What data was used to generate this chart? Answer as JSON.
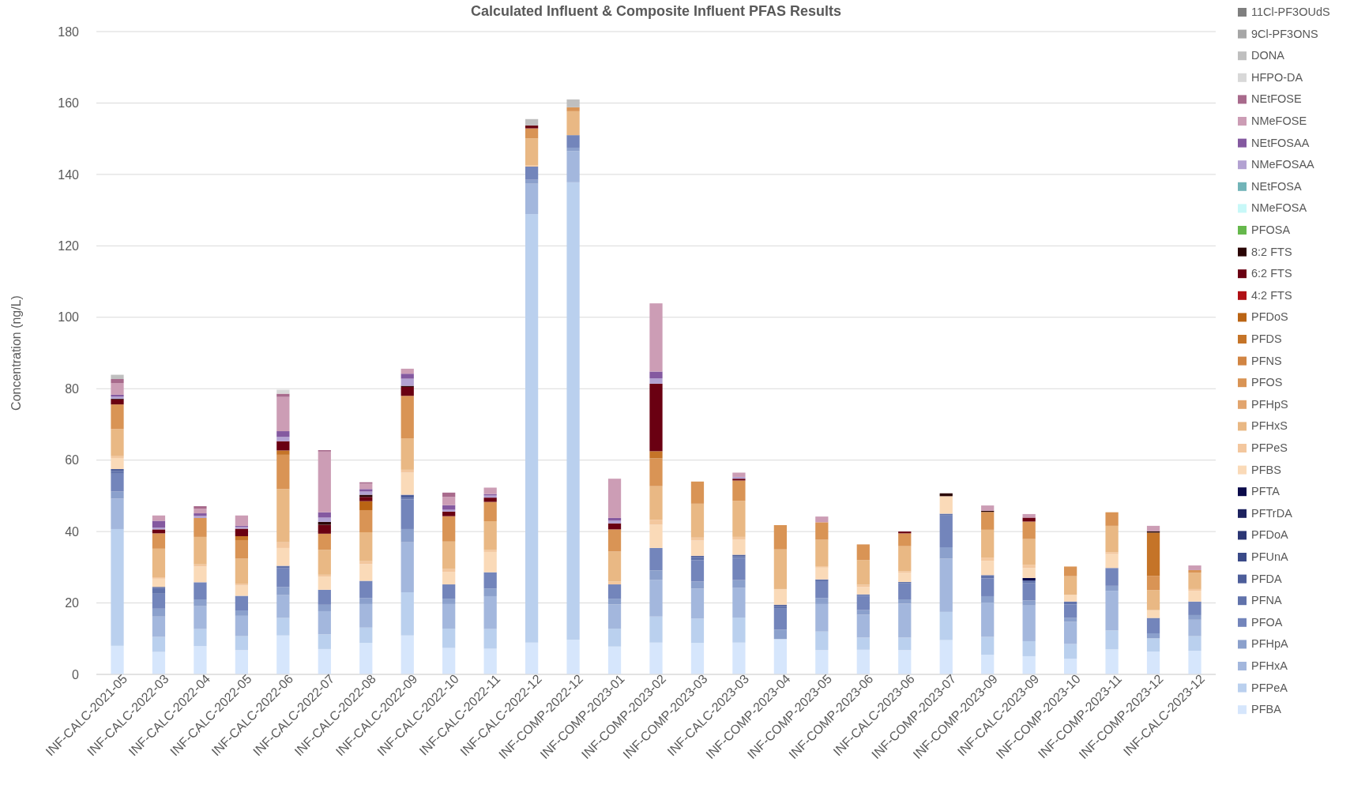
{
  "chart_data": {
    "type": "bar",
    "stacked": true,
    "title": "Calculated Influent & Composite Influent PFAS Results",
    "ylabel": "Concentration (ng/L)",
    "categories": [
      "INF-CALC-2021-05",
      "INF-CALC-2022-03",
      "INF-CALC-2022-04",
      "INF-CALC-2022-05",
      "INF-CALC-2022-06",
      "INF-CALC-2022-07",
      "INF-CALC-2022-08",
      "INF-CALC-2022-09",
      "INF-CALC-2022-10",
      "INF-CALC-2022-11",
      "INF-CALC-2022-12",
      "INF-COMP-2022-12",
      "INF-COMP-2023-01",
      "INF-COMP-2023-02",
      "INF-COMP-2023-03",
      "INF-CALC-2023-03",
      "INF-COMP-2023-04",
      "INF-COMP-2023-05",
      "INF-COMP-2023-06",
      "INF-CALC-2023-06",
      "INF-COMP-2023-07",
      "INF-COMP-2023-09",
      "INF-CALC-2023-09",
      "INF-COMP-2023-10",
      "INF-COMP-2023-11",
      "INF-COMP-2023-12",
      "INF-CALC-2023-12"
    ],
    "ylim": [
      0,
      180
    ],
    "yticks": [
      0,
      20,
      40,
      60,
      80,
      100,
      120,
      140,
      160,
      180
    ],
    "grid": "y",
    "legend": "right",
    "series": [
      {
        "name": "PFBA",
        "color": "#d6e6fc",
        "values": [
          8.0,
          6.3,
          7.9,
          6.8,
          10.9,
          7.1,
          8.8,
          10.9,
          7.4,
          7.2,
          8.9,
          9.7,
          7.8,
          8.9,
          8.8,
          8.9,
          9.9,
          6.8,
          6.9,
          6.8,
          9.6,
          5.5,
          5.1,
          4.4,
          7.0,
          6.4,
          6.6
        ]
      },
      {
        "name": "PFPeA",
        "color": "#bad0ee",
        "values": [
          32.7,
          4.2,
          4.8,
          3.9,
          4.9,
          4.1,
          4.3,
          12.1,
          5.4,
          5.5,
          120.0,
          128.1,
          5.0,
          7.3,
          6.8,
          7.0,
          0,
          5.2,
          3.4,
          3.5,
          7.9,
          5.0,
          4.2,
          4.1,
          5.3,
          3.7,
          4.1
        ]
      },
      {
        "name": "PFHxA",
        "color": "#a3b7dd",
        "values": [
          8.5,
          5.7,
          6.4,
          5.7,
          6.4,
          6.5,
          6.6,
          14.0,
          6.9,
          9.2,
          8.5,
          8.7,
          6.8,
          10.3,
          8.4,
          8.3,
          0,
          7.7,
          6.4,
          9.5,
          14.9,
          9.6,
          10.0,
          6.2,
          11.1,
          0,
          4.6
        ]
      },
      {
        "name": "PFHpA",
        "color": "#8ba0cc",
        "values": [
          2.0,
          2.2,
          1.9,
          1.5,
          2.3,
          1.8,
          1.7,
          3.7,
          1.5,
          2.1,
          1.1,
          1.0,
          1.6,
          2.6,
          2.0,
          2.2,
          2.6,
          1.7,
          1.3,
          1.2,
          3.2,
          1.8,
          1.4,
          1.1,
          1.4,
          1.4,
          1.3
        ]
      },
      {
        "name": "PFOA",
        "color": "#7385bb",
        "values": [
          5.0,
          4.2,
          4.8,
          4.1,
          5.2,
          4.2,
          4.8,
          8.3,
          4.0,
          4.6,
          3.7,
          3.5,
          4.0,
          6.3,
          6.0,
          6.2,
          5.9,
          4.7,
          4.0,
          4.5,
          8.9,
          5.0,
          4.8,
          3.8,
          5.0,
          4.0,
          3.8
        ]
      },
      {
        "name": "PFNA",
        "color": "#6173ab",
        "values": [
          0.8,
          1.6,
          0,
          0,
          0.7,
          0,
          0,
          0.4,
          0,
          0,
          0,
          0,
          0,
          0,
          0.8,
          0.5,
          0.7,
          0.5,
          0.4,
          0.4,
          0.5,
          0.9,
          0.8,
          0.8,
          0,
          0.3,
          0
        ]
      },
      {
        "name": "PFDA",
        "color": "#4d5e9a",
        "values": [
          0.5,
          0.3,
          0,
          0,
          0,
          0,
          0,
          0.9,
          0,
          0,
          0,
          0,
          0,
          0,
          0.4,
          0.4,
          0.4,
          0,
          0,
          0,
          0,
          0,
          0,
          0,
          0,
          0,
          0
        ]
      },
      {
        "name": "PFUnA",
        "color": "#3a4a88",
        "values": [
          0,
          0,
          0,
          0,
          0,
          0,
          0,
          0,
          0,
          0,
          0,
          0,
          0,
          0,
          0,
          0,
          0,
          0,
          0,
          0,
          0,
          0,
          0,
          0,
          0,
          0,
          0
        ]
      },
      {
        "name": "PFDoA",
        "color": "#2b3674",
        "values": [
          0,
          0,
          0,
          0,
          0,
          0,
          0,
          0,
          0,
          0,
          0,
          0,
          0,
          0,
          0,
          0,
          0,
          0,
          0,
          0,
          0,
          0,
          0,
          0,
          0,
          0,
          0
        ]
      },
      {
        "name": "PFTrDA",
        "color": "#1d225f",
        "values": [
          0,
          0,
          0,
          0,
          0,
          0,
          0,
          0,
          0,
          0,
          0,
          0,
          0,
          0,
          0,
          0,
          0,
          0,
          0,
          0,
          0,
          0,
          0,
          0,
          0,
          0,
          0
        ]
      },
      {
        "name": "PFTA",
        "color": "#0a0a4a",
        "values": [
          0,
          0,
          0,
          0,
          0,
          0,
          0,
          0,
          0,
          0,
          0,
          0,
          0,
          0,
          0,
          0,
          0,
          0,
          0,
          0,
          0,
          0,
          0.7,
          0,
          0,
          0,
          0
        ]
      },
      {
        "name": "PFBS",
        "color": "#fadab8",
        "values": [
          3.1,
          2.3,
          4.4,
          2.9,
          5.0,
          3.7,
          4.7,
          6.2,
          3.5,
          5.7,
          0,
          0,
          0,
          6.5,
          4.3,
          4.2,
          4.4,
          3.3,
          2.1,
          2.6,
          4.9,
          4.0,
          2.8,
          1.9,
          3.9,
          2.2,
          3.0
        ]
      },
      {
        "name": "PFPeS",
        "color": "#f3c79e",
        "values": [
          0.5,
          0.4,
          0.6,
          0.5,
          1.6,
          0.5,
          0.8,
          0.8,
          0.8,
          0.6,
          0.4,
          0,
          0.8,
          1.4,
          0.8,
          0.8,
          0,
          0.4,
          0.6,
          0.4,
          0,
          0.9,
          0.9,
          0,
          0.5,
          0,
          0.5
        ]
      },
      {
        "name": "PFHxS",
        "color": "#e9b884",
        "values": [
          7.6,
          8.0,
          7.7,
          7.0,
          14.9,
          7.0,
          8.1,
          8.8,
          7.7,
          8.0,
          7.5,
          6.7,
          8.4,
          9.4,
          9.5,
          10.1,
          11.1,
          7.4,
          6.9,
          7.0,
          0,
          7.8,
          7.2,
          5.2,
          7.4,
          5.6,
          4.6
        ]
      },
      {
        "name": "PFHpS",
        "color": "#e2a56e",
        "values": [
          0,
          0,
          0,
          0,
          0,
          0,
          0,
          0,
          0,
          0,
          0,
          0,
          0,
          0,
          0,
          0,
          0,
          0,
          0,
          0,
          0,
          0,
          0,
          0,
          0,
          0,
          0
        ]
      },
      {
        "name": "PFOS",
        "color": "#d99455",
        "values": [
          6.9,
          4.3,
          5.3,
          5.2,
          9.6,
          4.5,
          6.2,
          11.9,
          7.1,
          5.4,
          2.8,
          1.1,
          6.2,
          7.8,
          6.2,
          5.7,
          6.8,
          4.9,
          4.4,
          3.6,
          0,
          5.0,
          4.9,
          2.7,
          3.8,
          4.0,
          0.7
        ]
      },
      {
        "name": "PFNS",
        "color": "#d18543",
        "values": [
          0,
          0,
          0,
          0,
          0,
          0,
          0,
          0,
          0,
          0,
          0,
          0,
          0,
          0,
          0,
          0,
          0,
          0,
          0,
          0,
          0,
          0,
          0,
          0,
          0,
          0,
          0
        ]
      },
      {
        "name": "PFDS",
        "color": "#c57428",
        "values": [
          0,
          0,
          0,
          1.1,
          1.2,
          0,
          0,
          0,
          0,
          0,
          0,
          0,
          0,
          2.0,
          0,
          0,
          0,
          0,
          0,
          0,
          0,
          0,
          0,
          0,
          0,
          12.1,
          0
        ]
      },
      {
        "name": "PFDoS",
        "color": "#ba6414",
        "values": [
          0,
          0,
          0,
          0,
          0,
          0,
          2.5,
          0,
          0,
          0,
          0,
          0,
          0,
          0,
          0,
          0,
          0,
          0,
          0,
          0,
          0,
          0,
          0,
          0,
          0,
          0,
          0
        ]
      },
      {
        "name": "4:2 FTS",
        "color": "#b01015",
        "values": [
          0,
          0,
          0,
          0,
          0,
          0,
          0,
          0,
          0,
          0,
          0,
          0,
          0,
          0,
          0,
          0,
          0,
          0,
          0,
          0,
          0,
          0,
          0,
          0,
          0,
          0,
          0
        ]
      },
      {
        "name": "6:2 FTS",
        "color": "#6a0012",
        "values": [
          1.4,
          1.1,
          0,
          2.1,
          2.6,
          2.5,
          1.2,
          2.5,
          1.3,
          1.2,
          0.8,
          0,
          1.7,
          18.9,
          0,
          0.5,
          0,
          0,
          0,
          0.5,
          0,
          0,
          1.1,
          0,
          0,
          0,
          0
        ]
      },
      {
        "name": "8:2 FTS",
        "color": "#2a0505",
        "values": [
          0.2,
          0,
          0,
          0,
          0,
          0.8,
          0.6,
          0.3,
          0,
          0,
          0,
          0,
          0,
          0,
          0,
          0,
          0,
          0,
          0,
          0,
          0.8,
          0.3,
          0,
          0,
          0,
          0.4,
          0
        ]
      },
      {
        "name": "PFOSA",
        "color": "#66b84c",
        "values": [
          0,
          0,
          0,
          0,
          0,
          0,
          0,
          0,
          0,
          0,
          0,
          0,
          0,
          0,
          0,
          0,
          0,
          0,
          0,
          0,
          0,
          0,
          0,
          0,
          0,
          0,
          0
        ]
      },
      {
        "name": "NMeFOSA",
        "color": "#c8f8f8",
        "values": [
          0,
          0,
          0,
          0,
          0,
          0,
          0,
          0,
          0,
          0,
          0,
          0,
          0,
          0,
          0,
          0,
          0,
          0,
          0,
          0,
          0,
          0,
          0,
          0,
          0,
          0,
          0
        ]
      },
      {
        "name": "NEtFOSA",
        "color": "#72b4b8",
        "values": [
          0,
          0,
          0,
          0,
          0,
          0,
          0,
          0,
          0,
          0,
          0,
          0,
          0,
          0,
          0,
          0,
          0,
          0,
          0,
          0,
          0,
          0,
          0,
          0,
          0,
          0,
          0
        ]
      },
      {
        "name": "NMeFOSAA",
        "color": "#b3a2d2",
        "values": [
          0.6,
          0.5,
          0.6,
          0.5,
          1.2,
          1.2,
          0.9,
          2.0,
          0.5,
          0.6,
          0,
          0,
          0.8,
          1.5,
          0,
          0.5,
          0,
          0,
          0,
          0,
          0,
          0,
          0,
          0,
          0,
          0,
          0
        ]
      },
      {
        "name": "NEtFOSAA",
        "color": "#8459a0",
        "values": [
          0.5,
          1.9,
          0.7,
          0.3,
          1.6,
          1.5,
          0.7,
          1.4,
          1.3,
          0.4,
          0,
          0,
          0.7,
          1.9,
          0,
          0,
          0,
          0,
          0,
          0,
          0,
          0,
          0,
          0,
          0,
          0,
          0
        ]
      },
      {
        "name": "NMeFOSE",
        "color": "#cc9db5",
        "values": [
          3.3,
          1.5,
          1.3,
          2.9,
          9.6,
          17.0,
          1.5,
          1.4,
          2.3,
          1.8,
          0,
          0,
          11.0,
          19.1,
          0,
          1.2,
          0,
          1.6,
          0,
          0,
          0,
          1.5,
          1.0,
          0,
          0,
          1.5,
          1.3
        ]
      },
      {
        "name": "NEtFOSE",
        "color": "#a86a8c",
        "values": [
          1.1,
          0,
          0.7,
          0,
          0.9,
          0.4,
          0.4,
          0,
          1.2,
          0,
          0,
          0,
          0,
          0,
          0,
          0,
          0,
          0,
          0,
          0,
          0,
          0,
          0,
          0,
          0,
          0,
          0
        ]
      },
      {
        "name": "HFPO-DA",
        "color": "#d8d8d8",
        "values": [
          0,
          0,
          0,
          0,
          1.1,
          0,
          0,
          0,
          0,
          0,
          0,
          0,
          0,
          0,
          0,
          0,
          0,
          0,
          0,
          0,
          0,
          0,
          0,
          0,
          0,
          0,
          0
        ]
      },
      {
        "name": "DONA",
        "color": "#bfbfbf",
        "values": [
          1.2,
          0,
          0,
          0,
          0,
          0,
          0,
          0,
          0,
          0,
          1.8,
          2.2,
          0,
          0,
          0,
          0,
          0,
          0,
          0,
          0,
          0,
          0,
          0,
          0,
          0,
          0,
          0
        ]
      },
      {
        "name": "9Cl-PF3ONS",
        "color": "#a6a6a6",
        "values": [
          0,
          0,
          0,
          0,
          0,
          0,
          0,
          0,
          0,
          0,
          0,
          0,
          0,
          0,
          0,
          0,
          0,
          0,
          0,
          0,
          0,
          0,
          0,
          0,
          0,
          0,
          0
        ]
      },
      {
        "name": "11Cl-PF3OUdS",
        "color": "#7f7f7f",
        "values": [
          0,
          0,
          0,
          0,
          0,
          0,
          0,
          0,
          0,
          0,
          0,
          0,
          0,
          0,
          0,
          0,
          0,
          0,
          0,
          0,
          0,
          0,
          0,
          0,
          0,
          0,
          0
        ]
      }
    ]
  }
}
